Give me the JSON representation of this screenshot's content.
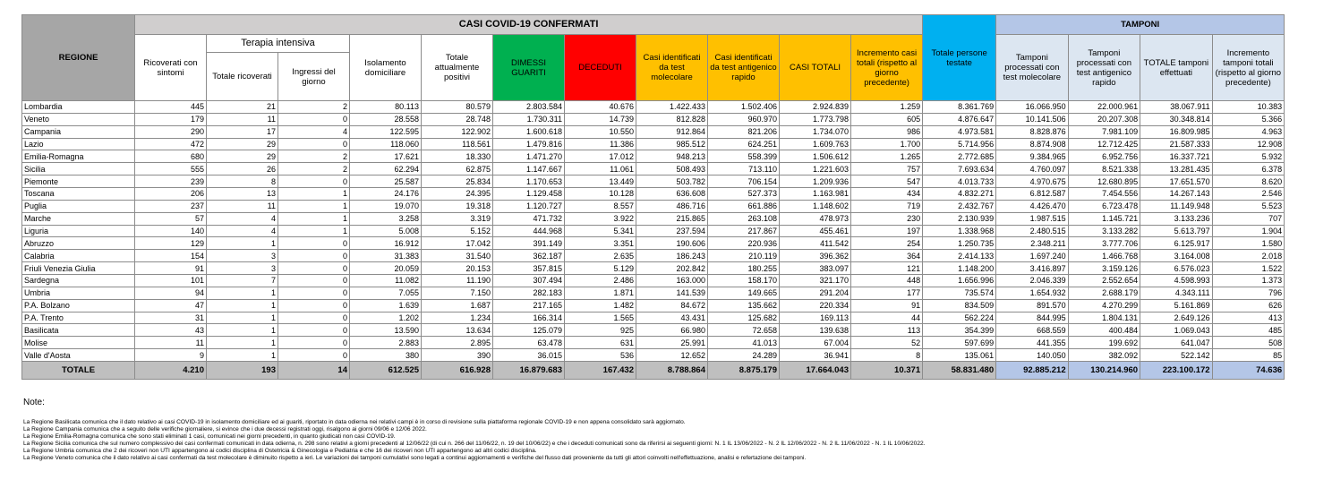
{
  "header": {
    "region": "REGIONE",
    "group_cases": "CASI COVID-19 CONFERMATI",
    "group_swabs": "TAMPONI",
    "icu_group": "Terapia intensiva",
    "columns": [
      "Ricoverati con sintomi",
      "Totale ricoverati",
      "Ingressi del giorno",
      "Isolamento domiciliare",
      "Totale attualmente positivi",
      "DIMESSI GUARITI",
      "DECEDUTI",
      "Casi identificati da test molecolare",
      "Casi identificati da test antigenico rapido",
      "CASI TOTALI",
      "Incremento casi totali (rispetto al giorno precedente)",
      "Totale persone testate",
      "Tamponi processati con test molecolare",
      "Tamponi processati con test antigenico rapido",
      "TOTALE tamponi effettuati",
      "Incremento tamponi totali (rispetto al giorno precedente)"
    ]
  },
  "table": {
    "rows": [
      [
        "Lombardia",
        "445",
        "21",
        "2",
        "80.113",
        "80.579",
        "2.803.584",
        "40.676",
        "1.422.433",
        "1.502.406",
        "2.924.839",
        "1.259",
        "8.361.769",
        "16.066.950",
        "22.000.961",
        "38.067.911",
        "10.383"
      ],
      [
        "Veneto",
        "179",
        "11",
        "0",
        "28.558",
        "28.748",
        "1.730.311",
        "14.739",
        "812.828",
        "960.970",
        "1.773.798",
        "605",
        "4.876.647",
        "10.141.506",
        "20.207.308",
        "30.348.814",
        "5.366"
      ],
      [
        "Campania",
        "290",
        "17",
        "4",
        "122.595",
        "122.902",
        "1.600.618",
        "10.550",
        "912.864",
        "821.206",
        "1.734.070",
        "986",
        "4.973.581",
        "8.828.876",
        "7.981.109",
        "16.809.985",
        "4.963"
      ],
      [
        "Lazio",
        "472",
        "29",
        "0",
        "118.060",
        "118.561",
        "1.479.816",
        "11.386",
        "985.512",
        "624.251",
        "1.609.763",
        "1.700",
        "5.714.956",
        "8.874.908",
        "12.712.425",
        "21.587.333",
        "12.908"
      ],
      [
        "Emilia-Romagna",
        "680",
        "29",
        "2",
        "17.621",
        "18.330",
        "1.471.270",
        "17.012",
        "948.213",
        "558.399",
        "1.506.612",
        "1.265",
        "2.772.685",
        "9.384.965",
        "6.952.756",
        "16.337.721",
        "5.932"
      ],
      [
        "Sicilia",
        "555",
        "26",
        "2",
        "62.294",
        "62.875",
        "1.147.667",
        "11.061",
        "508.493",
        "713.110",
        "1.221.603",
        "757",
        "7.693.634",
        "4.760.097",
        "8.521.338",
        "13.281.435",
        "6.378"
      ],
      [
        "Piemonte",
        "239",
        "8",
        "0",
        "25.587",
        "25.834",
        "1.170.653",
        "13.449",
        "503.782",
        "706.154",
        "1.209.936",
        "547",
        "4.013.733",
        "4.970.675",
        "12.680.895",
        "17.651.570",
        "8.620"
      ],
      [
        "Toscana",
        "206",
        "13",
        "1",
        "24.176",
        "24.395",
        "1.129.458",
        "10.128",
        "636.608",
        "527.373",
        "1.163.981",
        "434",
        "4.832.271",
        "6.812.587",
        "7.454.556",
        "14.267.143",
        "2.546"
      ],
      [
        "Puglia",
        "237",
        "11",
        "1",
        "19.070",
        "19.318",
        "1.120.727",
        "8.557",
        "486.716",
        "661.886",
        "1.148.602",
        "719",
        "2.432.767",
        "4.426.470",
        "6.723.478",
        "11.149.948",
        "5.523"
      ],
      [
        "Marche",
        "57",
        "4",
        "1",
        "3.258",
        "3.319",
        "471.732",
        "3.922",
        "215.865",
        "263.108",
        "478.973",
        "230",
        "2.130.939",
        "1.987.515",
        "1.145.721",
        "3.133.236",
        "707"
      ],
      [
        "Liguria",
        "140",
        "4",
        "1",
        "5.008",
        "5.152",
        "444.968",
        "5.341",
        "237.594",
        "217.867",
        "455.461",
        "197",
        "1.338.968",
        "2.480.515",
        "3.133.282",
        "5.613.797",
        "1.904"
      ],
      [
        "Abruzzo",
        "129",
        "1",
        "0",
        "16.912",
        "17.042",
        "391.149",
        "3.351",
        "190.606",
        "220.936",
        "411.542",
        "254",
        "1.250.735",
        "2.348.211",
        "3.777.706",
        "6.125.917",
        "1.580"
      ],
      [
        "Calabria",
        "154",
        "3",
        "0",
        "31.383",
        "31.540",
        "362.187",
        "2.635",
        "186.243",
        "210.119",
        "396.362",
        "364",
        "2.414.133",
        "1.697.240",
        "1.466.768",
        "3.164.008",
        "2.018"
      ],
      [
        "Friuli Venezia Giulia",
        "91",
        "3",
        "0",
        "20.059",
        "20.153",
        "357.815",
        "5.129",
        "202.842",
        "180.255",
        "383.097",
        "121",
        "1.148.200",
        "3.416.897",
        "3.159.126",
        "6.576.023",
        "1.522"
      ],
      [
        "Sardegna",
        "101",
        "7",
        "0",
        "11.082",
        "11.190",
        "307.494",
        "2.486",
        "163.000",
        "158.170",
        "321.170",
        "448",
        "1.656.996",
        "2.046.339",
        "2.552.654",
        "4.598.993",
        "1.373"
      ],
      [
        "Umbria",
        "94",
        "1",
        "0",
        "7.055",
        "7.150",
        "282.183",
        "1.871",
        "141.539",
        "149.665",
        "291.204",
        "177",
        "735.574",
        "1.654.932",
        "2.688.179",
        "4.343.111",
        "796"
      ],
      [
        "P.A. Bolzano",
        "47",
        "1",
        "0",
        "1.639",
        "1.687",
        "217.165",
        "1.482",
        "84.672",
        "135.662",
        "220.334",
        "91",
        "834.509",
        "891.570",
        "4.270.299",
        "5.161.869",
        "626"
      ],
      [
        "P.A. Trento",
        "31",
        "1",
        "0",
        "1.202",
        "1.234",
        "166.314",
        "1.565",
        "43.431",
        "125.682",
        "169.113",
        "44",
        "562.224",
        "844.995",
        "1.804.131",
        "2.649.126",
        "413"
      ],
      [
        "Basilicata",
        "43",
        "1",
        "0",
        "13.590",
        "13.634",
        "125.079",
        "925",
        "66.980",
        "72.658",
        "139.638",
        "113",
        "354.399",
        "668.559",
        "400.484",
        "1.069.043",
        "485"
      ],
      [
        "Molise",
        "11",
        "1",
        "0",
        "2.883",
        "2.895",
        "63.478",
        "631",
        "25.991",
        "41.013",
        "67.004",
        "52",
        "597.699",
        "441.355",
        "199.692",
        "641.047",
        "508"
      ],
      [
        "Valle d'Aosta",
        "9",
        "1",
        "0",
        "380",
        "390",
        "36.015",
        "536",
        "12.652",
        "24.289",
        "36.941",
        "8",
        "135.061",
        "140.050",
        "382.092",
        "522.142",
        "85"
      ]
    ],
    "total": [
      "TOTALE",
      "4.210",
      "193",
      "14",
      "612.525",
      "616.928",
      "16.879.683",
      "167.432",
      "8.788.864",
      "8.875.179",
      "17.664.043",
      "10.371",
      "58.831.480",
      "92.885.212",
      "130.214.960",
      "223.100.172",
      "74.636"
    ]
  },
  "notes": {
    "title": "Note:",
    "lines": [
      "La Regione Basilicata comunica che il dato relativo ai casi COVID-19 in isolamento domiciliare ed ai guariti, riportato in data odierna nei relativi campi è in corso di revisione sulla piattaforma regionale COVID-19 e non appena consolidato sarà aggiornato.",
      "La Regione Campania comunica che a seguito delle verifiche giornaliere, si evince che i due decessi registrati oggi, risalgono ai giorni 09/06 e 12/06 2022.",
      "La Regione Emilia-Romagna comunica che sono stati eliminati 1 casi, comunicati nei giorni precedenti, in quanto giudicati non casi COVID-19.",
      "La Regione Sicilia comunica che sul numero complessivo dei casi confermati comunicati in data odierna, n. 298 sono relativi a giorni precedenti al 12/06/22 (di cui n. 266 del 11/06/22, n. 19 del 10/06/22) e che i deceduti comunicati sono da riferirsi ai seguenti giorni: N. 1 IL 13/06/2022 - N. 2 IL 12/06/2022 - N. 2 IL 11/06/2022 - N. 1 IL 10/06/2022.",
      "La Regione Umbria comunica che  2 dei ricoveri non UTI appartengono ai codici disciplina di Ostetricia & Ginecologia e Pediatria e che 16 dei ricoveri non UTI appartengono ad altri codici disciplina.",
      "La Regione Veneto comunica che il dato relativo ai casi confermati da test molecolare è diminuito rispetto a ieri. Le variazioni dei tamponi cumulativi sono legati a continui aggiornamenti e verifiche del flusso dati proveniente da tutti gli attori coinvolti nell'effettuazione, analisi e refertazione dei tamponi."
    ]
  }
}
